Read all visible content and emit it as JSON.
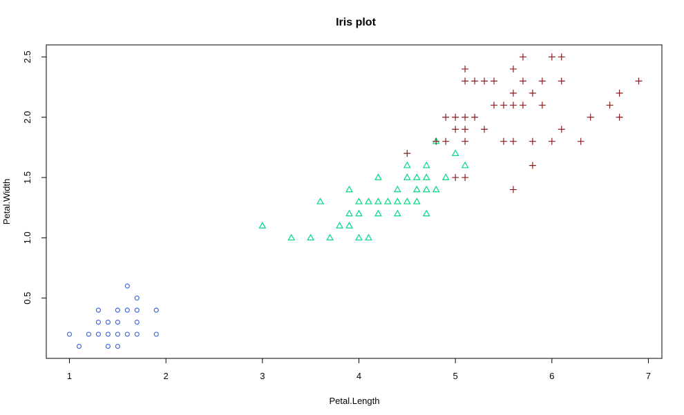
{
  "chart_data": {
    "type": "scatter",
    "title": "Iris plot",
    "xlabel": "Petal.Length",
    "ylabel": "Petal.Width",
    "xlim": [
      0.76,
      7.14
    ],
    "ylim": [
      0.0,
      2.6
    ],
    "xticks": [
      "1",
      "2",
      "3",
      "4",
      "5",
      "6",
      "7"
    ],
    "yticks": [
      "0.5",
      "1.0",
      "1.5",
      "2.0",
      "2.5"
    ],
    "grid": false,
    "series": [
      {
        "marker": "circle",
        "color": "#4169E1",
        "points": [
          [
            1.0,
            0.2
          ],
          [
            1.1,
            0.1
          ],
          [
            1.2,
            0.2
          ],
          [
            1.3,
            0.2
          ],
          [
            1.3,
            0.3
          ],
          [
            1.3,
            0.4
          ],
          [
            1.4,
            0.1
          ],
          [
            1.4,
            0.2
          ],
          [
            1.4,
            0.3
          ],
          [
            1.5,
            0.1
          ],
          [
            1.5,
            0.2
          ],
          [
            1.5,
            0.3
          ],
          [
            1.5,
            0.4
          ],
          [
            1.6,
            0.2
          ],
          [
            1.6,
            0.4
          ],
          [
            1.6,
            0.6
          ],
          [
            1.7,
            0.2
          ],
          [
            1.7,
            0.3
          ],
          [
            1.7,
            0.4
          ],
          [
            1.7,
            0.5
          ],
          [
            1.9,
            0.2
          ],
          [
            1.9,
            0.4
          ]
        ]
      },
      {
        "marker": "triangle",
        "color": "#00D981",
        "points": [
          [
            3.0,
            1.1
          ],
          [
            3.3,
            1.0
          ],
          [
            3.5,
            1.0
          ],
          [
            3.6,
            1.3
          ],
          [
            3.7,
            1.0
          ],
          [
            3.8,
            1.1
          ],
          [
            3.9,
            1.1
          ],
          [
            3.9,
            1.2
          ],
          [
            3.9,
            1.4
          ],
          [
            4.0,
            1.0
          ],
          [
            4.0,
            1.2
          ],
          [
            4.0,
            1.3
          ],
          [
            4.1,
            1.0
          ],
          [
            4.1,
            1.3
          ],
          [
            4.2,
            1.2
          ],
          [
            4.2,
            1.3
          ],
          [
            4.2,
            1.5
          ],
          [
            4.3,
            1.3
          ],
          [
            4.4,
            1.2
          ],
          [
            4.4,
            1.3
          ],
          [
            4.4,
            1.4
          ],
          [
            4.5,
            1.3
          ],
          [
            4.5,
            1.5
          ],
          [
            4.5,
            1.6
          ],
          [
            4.6,
            1.3
          ],
          [
            4.6,
            1.4
          ],
          [
            4.6,
            1.5
          ],
          [
            4.7,
            1.2
          ],
          [
            4.7,
            1.4
          ],
          [
            4.7,
            1.5
          ],
          [
            4.7,
            1.6
          ],
          [
            4.8,
            1.4
          ],
          [
            4.8,
            1.8
          ],
          [
            4.9,
            1.5
          ],
          [
            5.0,
            1.7
          ],
          [
            5.1,
            1.6
          ]
        ]
      },
      {
        "marker": "plus",
        "color": "#8B1A1A",
        "points": [
          [
            4.5,
            1.7
          ],
          [
            4.8,
            1.8
          ],
          [
            4.9,
            1.8
          ],
          [
            4.9,
            2.0
          ],
          [
            5.0,
            1.5
          ],
          [
            5.0,
            1.9
          ],
          [
            5.0,
            2.0
          ],
          [
            5.1,
            1.5
          ],
          [
            5.1,
            1.8
          ],
          [
            5.1,
            1.9
          ],
          [
            5.1,
            2.0
          ],
          [
            5.1,
            2.3
          ],
          [
            5.1,
            2.4
          ],
          [
            5.2,
            2.0
          ],
          [
            5.2,
            2.3
          ],
          [
            5.3,
            1.9
          ],
          [
            5.3,
            2.3
          ],
          [
            5.4,
            2.1
          ],
          [
            5.4,
            2.3
          ],
          [
            5.5,
            1.8
          ],
          [
            5.5,
            2.1
          ],
          [
            5.6,
            1.4
          ],
          [
            5.6,
            1.8
          ],
          [
            5.6,
            2.1
          ],
          [
            5.6,
            2.2
          ],
          [
            5.6,
            2.4
          ],
          [
            5.7,
            2.1
          ],
          [
            5.7,
            2.3
          ],
          [
            5.7,
            2.5
          ],
          [
            5.8,
            1.6
          ],
          [
            5.8,
            1.8
          ],
          [
            5.8,
            2.2
          ],
          [
            5.9,
            2.1
          ],
          [
            5.9,
            2.3
          ],
          [
            6.0,
            1.8
          ],
          [
            6.0,
            2.5
          ],
          [
            6.1,
            1.9
          ],
          [
            6.1,
            2.3
          ],
          [
            6.1,
            2.5
          ],
          [
            6.3,
            1.8
          ],
          [
            6.4,
            2.0
          ],
          [
            6.6,
            2.1
          ],
          [
            6.7,
            2.0
          ],
          [
            6.7,
            2.2
          ],
          [
            6.9,
            2.3
          ]
        ]
      }
    ]
  }
}
